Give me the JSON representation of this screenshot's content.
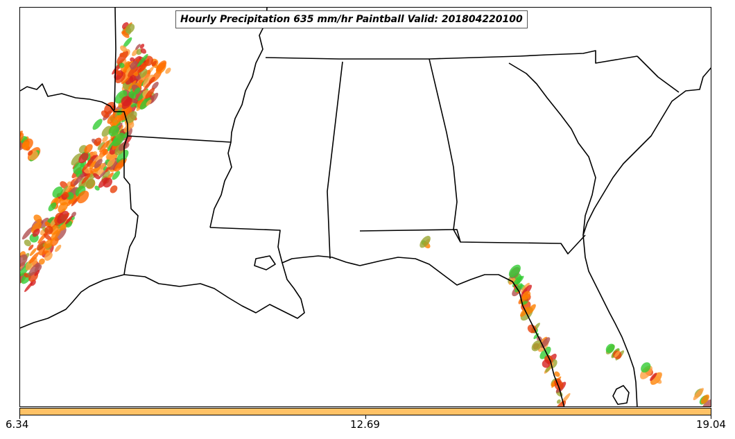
{
  "title": "Hourly Precipitation 635 mm/hr Paintball Valid: 201804220100",
  "colorbar": {
    "color": "#ffc266",
    "ticks": [
      "6.34",
      "12.69",
      "19.04"
    ]
  },
  "colors": {
    "boundary": "#000000",
    "paintball_palette": [
      "#ff8000",
      "#ff6a00",
      "#e8400a",
      "#d62020",
      "#33cc33",
      "#9aa633",
      "#b05050",
      "#ffa040"
    ]
  }
}
